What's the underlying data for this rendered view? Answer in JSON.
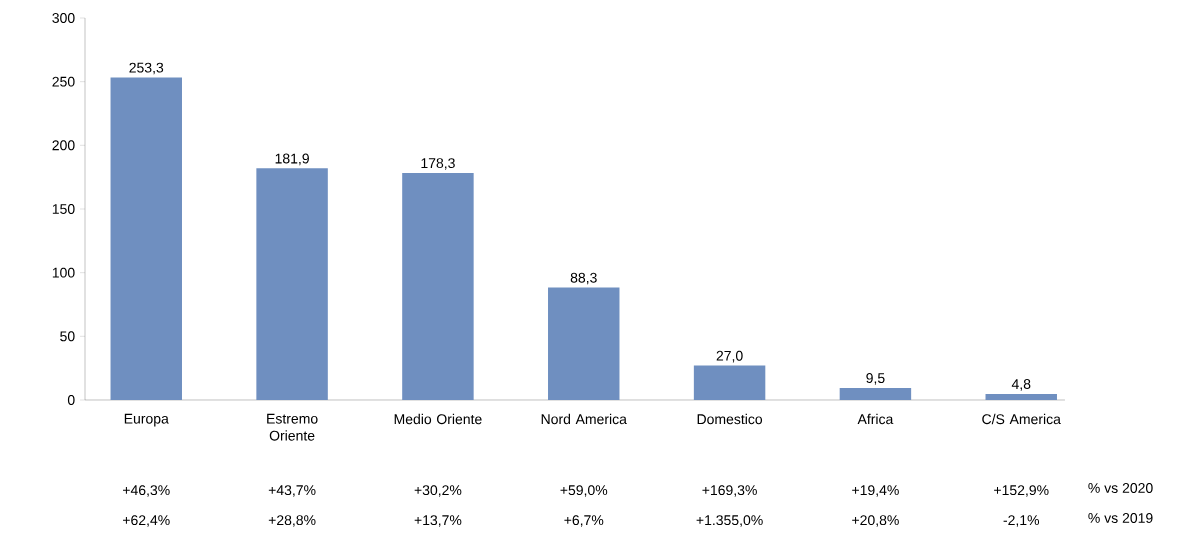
{
  "chart_data": {
    "type": "bar",
    "categories": [
      "Europa",
      "Estremo Oriente",
      "Medio Oriente",
      "Nord America",
      "Domestico",
      "Africa",
      "C/S America"
    ],
    "values": [
      253.3,
      181.9,
      178.3,
      88.3,
      27.0,
      9.5,
      4.8
    ],
    "value_labels": [
      "253,3",
      "181,9",
      "178,3",
      "88,3",
      "27,0",
      "9,5",
      "4,8"
    ],
    "color": "#6f8fc0",
    "ylim": [
      0,
      300
    ],
    "yticks": [
      0,
      50,
      100,
      150,
      200,
      250,
      300
    ],
    "grid": false,
    "annotations": [
      "+46,3%",
      "+43,7%",
      "+30,2%",
      "+59,0%",
      "+169,3%",
      "+19,4%",
      "+152,9%",
      "% vs 2020",
      "+62,4%",
      "+28,8%",
      "+13,7%",
      "+6,7%",
      "+1.355,0%",
      "+20,8%",
      "-2,1%",
      "% vs 2019"
    ]
  }
}
